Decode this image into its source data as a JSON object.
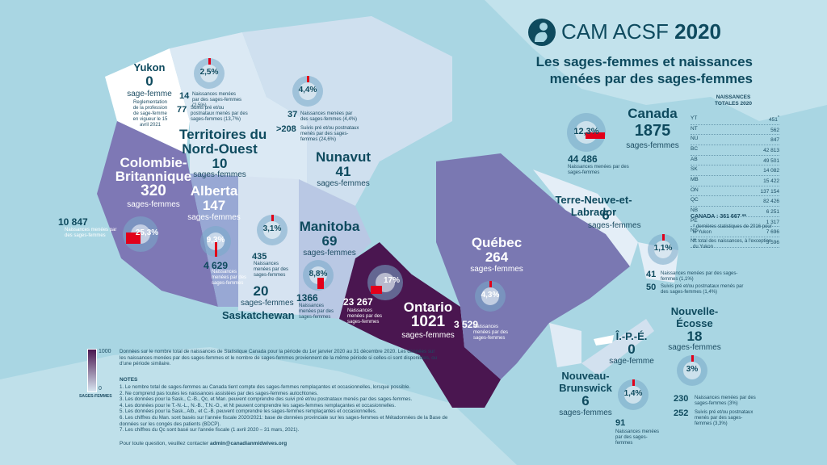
{
  "header": {
    "logo_text": "CAM ACSF",
    "year": "2020",
    "title_line1": "Les sages-femmes et naissances",
    "title_line2": "menées par des sages-femmes"
  },
  "canada": {
    "name": "Canada",
    "midwives": "1875",
    "unit": "sages-femmes",
    "pct": "12,3%",
    "births": "44 486",
    "births_label": "Naissances menées par des sages-femmes"
  },
  "provinces": {
    "yukon": {
      "name": "Yukon",
      "midwives": "0",
      "unit": "sage-femme",
      "note": "Reglementation de la profession de sage-femme en vigueur le 15 avril 2021"
    },
    "nwt": {
      "name_line1": "Territoires du",
      "name_line2": "Nord-Ouest",
      "midwives": "10",
      "unit": "sages-femmes",
      "pct": "2,5%",
      "n1": "14",
      "n1_label": "Naissances menées par des sages-femmes (2,5%)",
      "n2": "77",
      "n2_label": "Suivis pré et/ou postnataux menés par des sages-femmes (13,7%)"
    },
    "nunavut": {
      "name": "Nunavut",
      "midwives": "41",
      "unit": "sages-femmes",
      "pct": "4,4%",
      "n1": "37",
      "n1_label": "Naissances menées par des sages-femmes (4,4%)",
      "n2": ">208",
      "n2_label": "Suivis pré et/ou postnataux menés par des sages-femmes (24,6%)"
    },
    "bc": {
      "name_line1": "Colombie-",
      "name_line2": "Britannique",
      "midwives": "320",
      "unit": "sages-femmes",
      "pct": "25,3%",
      "births": "10 847",
      "births_label": "Naissances menées par des sages-femmes"
    },
    "alberta": {
      "name": "Alberta",
      "midwives": "147",
      "unit": "sages-femmes",
      "pct": "9,3%",
      "births": "4 629",
      "births_label": "Naissances menées par des sages-femmes"
    },
    "sask": {
      "name": "Saskatchewan",
      "midwives": "20",
      "unit": "sages-femmes",
      "pct": "3,1%",
      "births": "435",
      "births_label": "Naissances menées par des sages-femmes"
    },
    "manitoba": {
      "name": "Manitoba",
      "midwives": "69",
      "unit": "sages-femmes",
      "pct": "8,8%",
      "births": "1366",
      "births_label": "Naissances menées par des sages-femmes"
    },
    "ontario": {
      "name": "Ontario",
      "midwives": "1021",
      "unit": "sages-femmes",
      "pct": "17%",
      "births": "23 267",
      "births_label": "Naissances menées par des sages-femmes"
    },
    "quebec": {
      "name": "Québec",
      "midwives": "264",
      "unit": "sages-femmes",
      "pct": "4,3%",
      "births": "3 529",
      "births_label": "Naissances menées par des sages-femmes"
    },
    "nl": {
      "name_line1": "Terre-Neuve-et-",
      "name_line2": "Labrador",
      "midwives": "6",
      "unit": "sages-femmes",
      "pct": "1,1%",
      "n1": "41",
      "n1_label": "Naissances menées par des sages-femmes (1,1%)",
      "n2": "50",
      "n2_label": "Suivis pré et/ou postnataux menés par des sages-femmes (1,4%)"
    },
    "ns": {
      "name_line1": "Nouvelle-",
      "name_line2": "Écosse",
      "midwives": "18",
      "unit": "sages-femmes",
      "pct": "3%",
      "n1": "230",
      "n1_label": "Naissances menées par des sages-femmes (3%)",
      "n2": "252",
      "n2_label": "Suivis pré et/ou postnataux menés par des sages-femmes (3,3%)"
    },
    "pei": {
      "name": "Î.-P.-É.",
      "midwives": "0",
      "unit": "sage-femme"
    },
    "nb": {
      "name_line1": "Nouveau-",
      "name_line2": "Brunswick",
      "midwives": "6",
      "unit": "sages-femmes",
      "pct": "1,4%",
      "births": "91",
      "births_label": "Naissances menées par des sages-femmes"
    }
  },
  "table": {
    "title_line1": "NAISSANCES",
    "title_line2": "TOTALES 2020",
    "rows": [
      {
        "code": "YT",
        "value": "451",
        "mark": "*"
      },
      {
        "code": "NT",
        "value": "562",
        "mark": ""
      },
      {
        "code": "NU",
        "value": "847",
        "mark": ""
      },
      {
        "code": "BC",
        "value": "42 813",
        "mark": ""
      },
      {
        "code": "AB",
        "value": "49 501",
        "mark": ""
      },
      {
        "code": "SK",
        "value": "14 082",
        "mark": ""
      },
      {
        "code": "MB",
        "value": "15 422",
        "mark": ""
      },
      {
        "code": "ON",
        "value": "137 154",
        "mark": ""
      },
      {
        "code": "QC",
        "value": "82 426",
        "mark": ""
      },
      {
        "code": "NB",
        "value": "6 251",
        "mark": ""
      },
      {
        "code": "PE",
        "value": "1 317",
        "mark": ""
      },
      {
        "code": "NS",
        "value": "7 696",
        "mark": ""
      },
      {
        "code": "NL",
        "value": "3 596",
        "mark": ""
      }
    ],
    "total_label": "CANADA :",
    "total_value": "361 667",
    "total_mark": "**",
    "foot1": "* dernières statistiques de 2016 pour le Yukon",
    "foot2": "** total des naissances, à l'exception du Yukon"
  },
  "legend": {
    "max": "1000",
    "min": "0",
    "label": "SAGES-FEMMES",
    "color_low": "#d8e6f1",
    "color_high": "#4a1650"
  },
  "notes": {
    "intro": "Données sur le nombre total de naissances de Statistique Canada pour la période du 1er janvier 2020 au 31 décembre 2020. Les données sur les naissances menées par des sages-femmes et le nombre de sages-femmes proviennent de la même période si celles-ci sont disponibles, ou d'une période similaire.",
    "title": "NOTES",
    "items": [
      "1. Le nombre total de sages-femmes au Canada tient compte des sages-femmes remplaçantes et occasionnelles, lorsque possible.",
      "2. Ne comprend pas toutes les naissances assistées par des sages-femmes autochtones.",
      "3. Les données pour la Sask., C.-B., Qc, et Man. peuvent comprendre des suivi pré et/ou postnataux menés par des sages-femmes.",
      "4. Les données pour le T.-N.-L., N.-B., T.N.-O., et Nt peuvent comprendre les sages-femmes remplaçantes et occasionnelles.",
      "5. Les données pour la Sask., Alb., et C.-B. peuvent comprendre les sages-femmes remplaçantes et occasionnelles.",
      "6. Les chiffres du Man. sont basés sur l'année fiscale 2020/2021: base de données provinciale sur les sages-femmes et Métadonnées de la Base de données sur les congés des patients (BDCP).",
      "7. Les chiffres du Qc sont basé sur l'année fiscale (1 avril 2020 – 31 mars, 2021)."
    ],
    "contact_prefix": "Pour toute question, veuillez contacter ",
    "contact_email": "admin@canadianmidwives.org"
  },
  "colors": {
    "ocean": "#a9d6e3",
    "land_light": "#ffffff",
    "ontario": "#4a1650",
    "wedge": "#e2001a"
  }
}
